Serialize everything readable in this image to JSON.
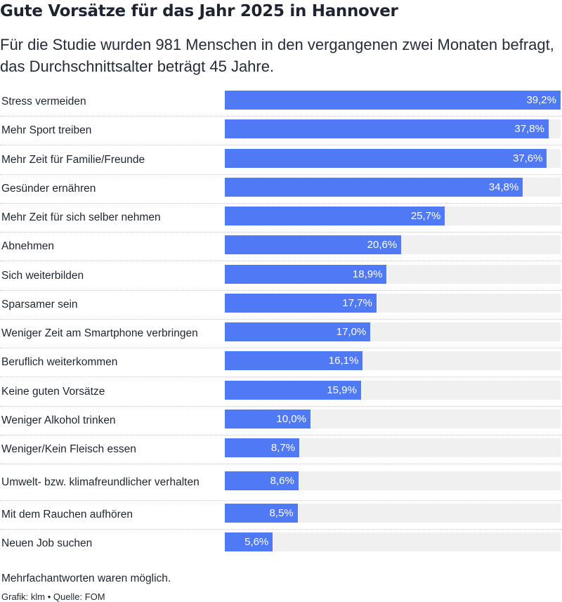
{
  "title": "Gute Vorsätze für das Jahr 2025 in Hannover",
  "subtitle": "Für die Studie wurden 981 Menschen in den vergangenen zwei Monaten befragt, das Durchschnittsalter beträgt 45 Jahre.",
  "note": "Mehrfachantworten waren möglich.",
  "source": "Grafik: klm • Quelle: FOM",
  "colors": {
    "bar": "#5079f6",
    "track": "#f0f0f0",
    "value_text": "#ffffff"
  },
  "chart_data": {
    "type": "bar",
    "orientation": "horizontal",
    "title": "Gute Vorsätze für das Jahr 2025 in Hannover",
    "xlim": [
      0,
      39.2
    ],
    "grid": false,
    "categories": [
      "Stress vermeiden",
      "Mehr Sport treiben",
      "Mehr Zeit für Familie/Freunde",
      "Gesünder ernähren",
      "Mehr Zeit für sich selber nehmen",
      "Abnehmen",
      "Sich weiterbilden",
      "Sparsamer sein",
      "Weniger Zeit am Smartphone verbringen",
      "Beruflich weiterkommen",
      "Keine guten Vorsätze",
      "Weniger Alkohol trinken",
      "Weniger/Kein Fleisch essen",
      "Umwelt- bzw. klimafreundlicher verhalten",
      "Mit dem Rauchen aufhören",
      "Neuen Job suchen"
    ],
    "values": [
      39.2,
      37.8,
      37.6,
      34.8,
      25.7,
      20.6,
      18.9,
      17.7,
      17.0,
      16.1,
      15.9,
      10.0,
      8.7,
      8.6,
      8.5,
      5.6
    ],
    "value_labels": [
      "39,2%",
      "37,8%",
      "37,6%",
      "34,8%",
      "25,7%",
      "20,6%",
      "18,9%",
      "17,7%",
      "17,0%",
      "16,1%",
      "15,9%",
      "10,0%",
      "8,7%",
      "8,6%",
      "8,5%",
      "5,6%"
    ]
  }
}
